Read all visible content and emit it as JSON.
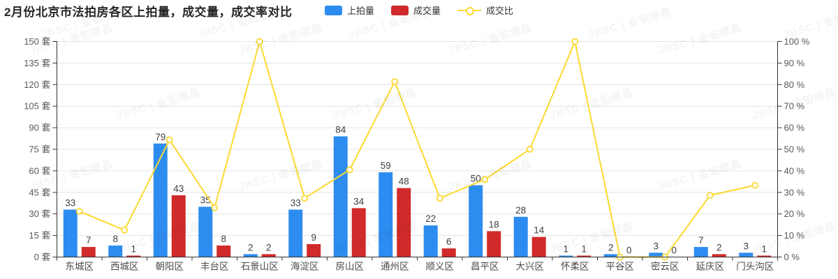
{
  "title": "2月份北京市法拍房各区上拍量，成交量，成交率对比",
  "watermark": "JBSC | 金铂顺昌",
  "legend": {
    "items": [
      {
        "label": "上拍量",
        "type": "bar",
        "color": "#2d8cf0"
      },
      {
        "label": "成交量",
        "type": "bar",
        "color": "#d02a2a"
      },
      {
        "label": "成交比",
        "type": "line",
        "color": "#fbd930"
      }
    ]
  },
  "chart_data": {
    "type": "bar",
    "title": "2月份北京市法拍房各区上拍量，成交量，成交率对比",
    "categories": [
      "东城区",
      "西城区",
      "朝阳区",
      "丰台区",
      "石景山区",
      "海淀区",
      "房山区",
      "通州区",
      "顺义区",
      "昌平区",
      "大兴区",
      "怀柔区",
      "平谷区",
      "密云区",
      "延庆区",
      "门头沟区"
    ],
    "series": [
      {
        "name": "上拍量",
        "type": "bar",
        "axis": "left",
        "color": "#2d8cf0",
        "values": [
          33,
          8,
          79,
          35,
          2,
          33,
          84,
          59,
          22,
          50,
          28,
          1,
          2,
          3,
          7,
          3
        ]
      },
      {
        "name": "成交量",
        "type": "bar",
        "axis": "left",
        "color": "#d02a2a",
        "values": [
          7,
          1,
          43,
          8,
          2,
          9,
          34,
          48,
          6,
          18,
          14,
          1,
          0,
          0,
          2,
          1
        ]
      },
      {
        "name": "成交比",
        "type": "line",
        "axis": "right",
        "color": "#fbd930",
        "marker": "hollow-circle",
        "values": [
          21.2,
          12.5,
          54.4,
          22.9,
          100,
          27.3,
          40.5,
          81.4,
          27.3,
          36,
          50,
          100,
          0,
          0,
          28.6,
          33.3
        ]
      }
    ],
    "left_axis": {
      "min": 0,
      "max": 150,
      "step": 15,
      "unit": "套",
      "labels": [
        "0 套",
        "15 套",
        "30 套",
        "45 套",
        "60 套",
        "75 套",
        "90 套",
        "105 套",
        "120 套",
        "135 套",
        "150 套"
      ]
    },
    "right_axis": {
      "min": 0,
      "max": 100,
      "step": 10,
      "unit": "%",
      "labels": [
        "0 %",
        "10 %",
        "20 %",
        "30 %",
        "40 %",
        "50 %",
        "60 %",
        "70 %",
        "80 %",
        "90 %",
        "100 %"
      ]
    },
    "grid": true,
    "legend_position": "top-center",
    "colors": {
      "grid_line": "#e4e4e4",
      "axis_line": "#333333",
      "tick_label": "#595959",
      "value_label": "#404040"
    }
  }
}
